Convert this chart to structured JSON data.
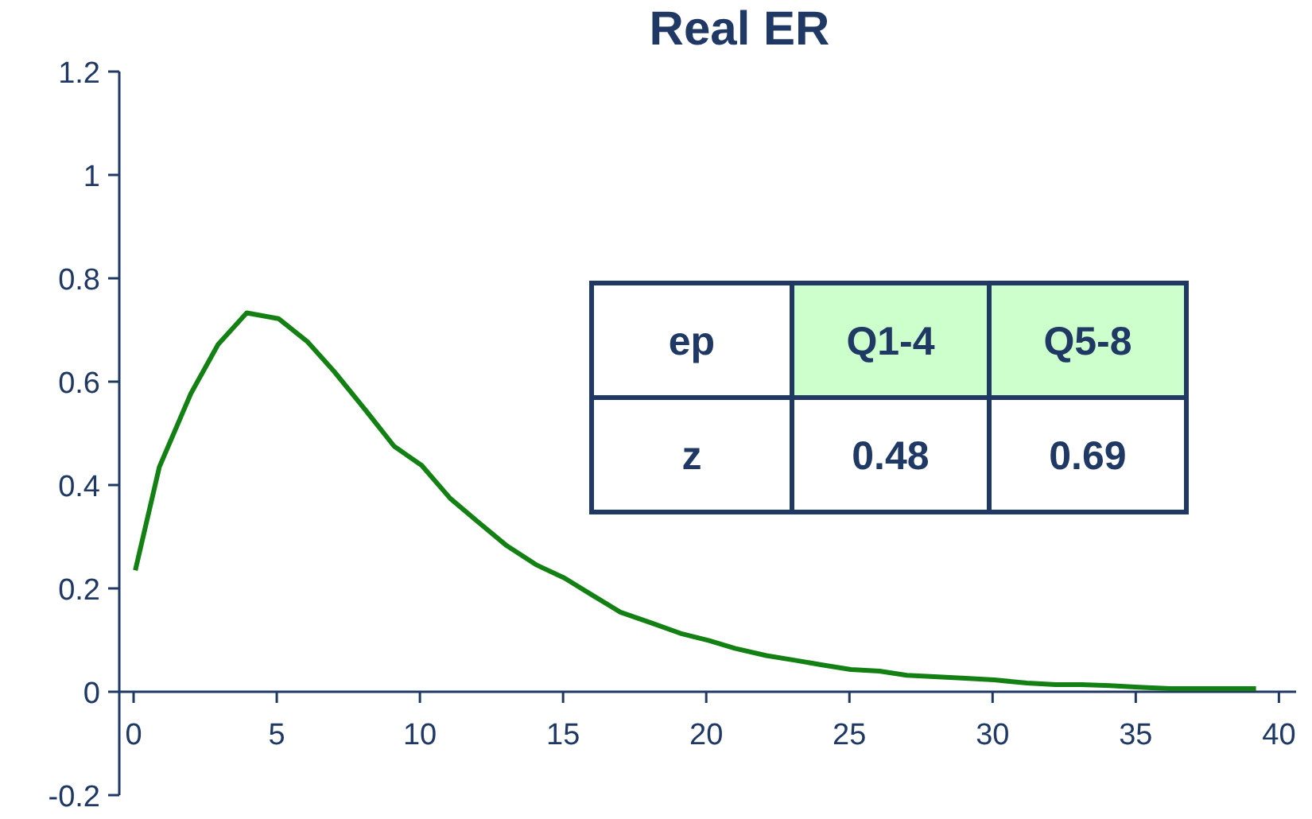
{
  "chart_data": {
    "type": "line",
    "title": "Real ER",
    "x": [
      0.06,
      0.9,
      2,
      2.95,
      3.95,
      5.06,
      6.06,
      7,
      8.1,
      9.1,
      10.06,
      11.06,
      12,
      13,
      14.05,
      15.05,
      16.05,
      17,
      18.1,
      19.1,
      20.1,
      21,
      22.1,
      23.1,
      24.05,
      25.05,
      26.05,
      27,
      28.1,
      29.05,
      30.05,
      31.2,
      32.2,
      33.1,
      34.1,
      35.1,
      36.2,
      39.2
    ],
    "series": [
      {
        "color": "#138013",
        "values": [
          0.235,
          0.435,
          0.577,
          0.672,
          0.733,
          0.722,
          0.678,
          0.62,
          0.545,
          0.475,
          0.438,
          0.374,
          0.33,
          0.284,
          0.246,
          0.22,
          0.186,
          0.154,
          0.133,
          0.113,
          0.099,
          0.084,
          0.07,
          0.061,
          0.052,
          0.043,
          0.04,
          0.032,
          0.029,
          0.026,
          0.023,
          0.017,
          0.014,
          0.014,
          0.012,
          0.009,
          0.006,
          0.006
        ]
      }
    ],
    "xlim": [
      -0.5,
      40.6
    ],
    "ylim": [
      -0.2,
      1.2
    ],
    "xticks": [
      0,
      5,
      10,
      15,
      20,
      25,
      30,
      35,
      40
    ],
    "yticks": [
      -0.2,
      0,
      0.2,
      0.4,
      0.6,
      0.8,
      1,
      1.2
    ],
    "grid": false,
    "marker": "none",
    "line_style": "solid",
    "annotations": [
      "ep",
      "Q1-4",
      "Q5-8",
      "z",
      "0.48",
      "0.69"
    ]
  }
}
